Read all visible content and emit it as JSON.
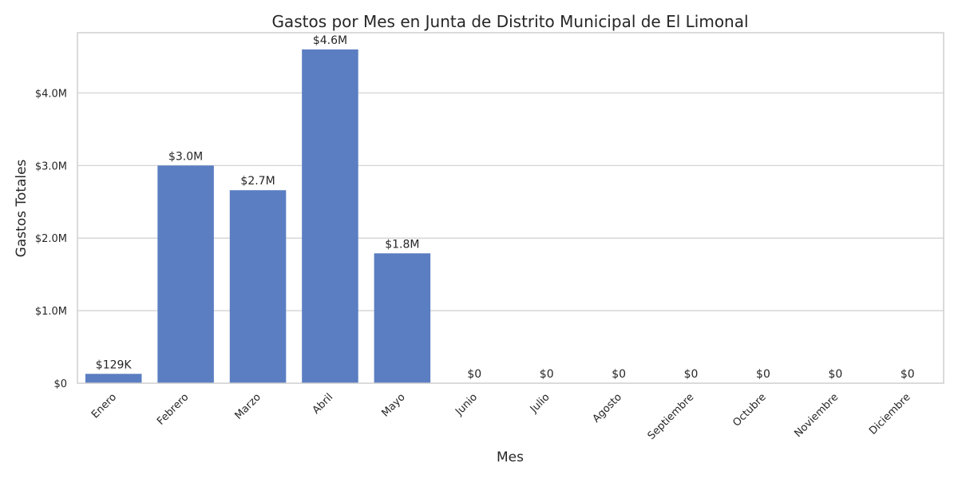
{
  "chart_data": {
    "type": "bar",
    "title": "Gastos por Mes en Junta de Distrito Municipal de El Limonal",
    "xlabel": "Mes",
    "ylabel": "Gastos Totales",
    "categories": [
      "Enero",
      "Febrero",
      "Marzo",
      "Abril",
      "Mayo",
      "Junio",
      "Julio",
      "Agosto",
      "Septiembre",
      "Octubre",
      "Noviembre",
      "Diciembre"
    ],
    "values": [
      129000,
      3000000,
      2660000,
      4600000,
      1790000,
      0,
      0,
      0,
      0,
      0,
      0,
      0
    ],
    "value_labels": [
      "$129K",
      "$3.0M",
      "$2.7M",
      "$4.6M",
      "$1.8M",
      "$0",
      "$0",
      "$0",
      "$0",
      "$0",
      "$0",
      "$0"
    ],
    "yticks": [
      0,
      1000000,
      2000000,
      3000000,
      4000000
    ],
    "ytick_labels": [
      "$0",
      "$1.0M",
      "$2.0M",
      "$3.0M",
      "$4.0M"
    ],
    "ylim": [
      0,
      4830000
    ],
    "grid": "horizontal",
    "legend": "none",
    "bar_color": "#5b7ec2"
  }
}
